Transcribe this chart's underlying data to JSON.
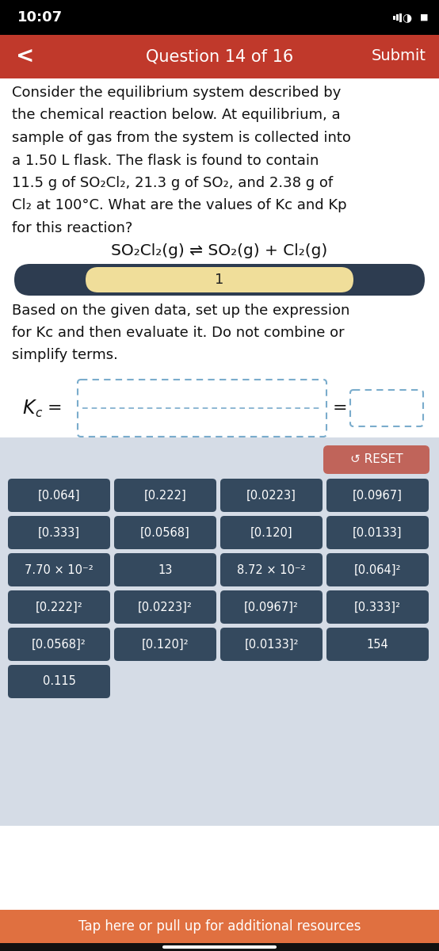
{
  "status_bar_text": "10:07",
  "header_text": "Question 14 of 16",
  "submit_text": "Submit",
  "header_bg": "#c0392b",
  "status_bar_bg": "#000000",
  "back_arrow": "<",
  "body_bg": "#ffffff",
  "question_lines": [
    "Consider the equilibrium system described by",
    "the chemical reaction below. At equilibrium, a",
    "sample of gas from the system is collected into",
    "a 1.50 L flask. The flask is found to contain",
    "11.5 g of SO₂Cl₂, 21.3 g of SO₂, and 2.38 g of",
    "Cl₂ at 100°C. What are the values of Kc and Kp",
    "for this reaction?"
  ],
  "reaction_text": "SO₂Cl₂(g) ⇌ SO₂(g) + Cl₂(g)",
  "step_label_bg": "#2d3c50",
  "step_label_text_bg": "#f0de9a",
  "step_number": "1",
  "instruction_lines": [
    "Based on the given data, set up the expression",
    "for Kc and then evaluate it. Do not combine or",
    "simplify terms."
  ],
  "kc_main": "K",
  "kc_sub": "c",
  "button_area_bg": "#d5dce6",
  "reset_button_bg": "#c0645a",
  "reset_text": "↺ RESET",
  "bottom_bar_bg": "#e07040",
  "bottom_bar_text": "Tap here or pull up for additional resources",
  "buttons": [
    [
      "[0.064]",
      "[0.222]",
      "[0.0223]",
      "[0.0967]"
    ],
    [
      "[0.333]",
      "[0.0568]",
      "[0.120]",
      "[0.0133]"
    ],
    [
      "7.70 × 10⁻²",
      "13",
      "8.72 × 10⁻²",
      "[0.064]²"
    ],
    [
      "[0.222]²",
      "[0.0223]²",
      "[0.0967]²",
      "[0.333]²"
    ],
    [
      "[0.0568]²",
      "[0.120]²",
      "[0.0133]²",
      "154"
    ],
    [
      "0.115",
      "",
      "",
      ""
    ]
  ],
  "button_bg": "#34495e",
  "button_text_color": "#ffffff"
}
